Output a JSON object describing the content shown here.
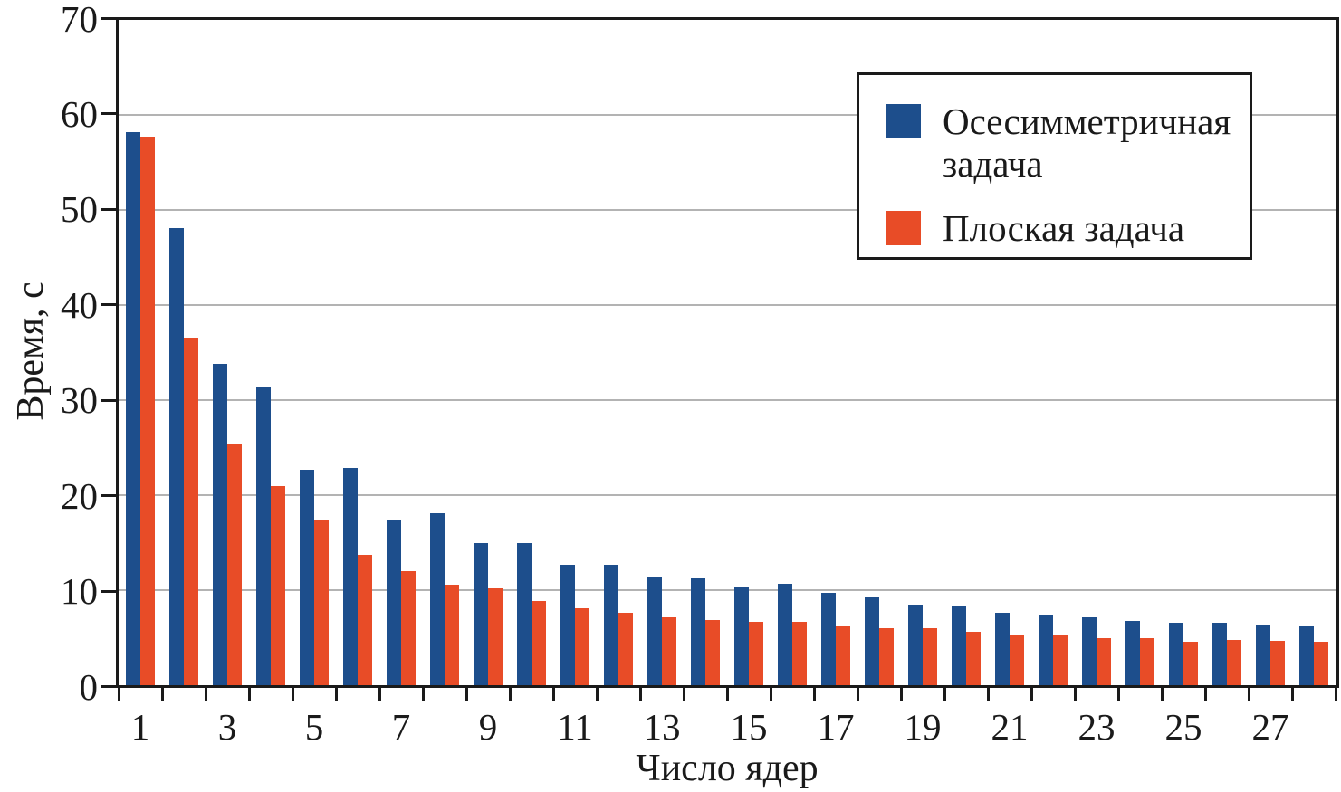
{
  "chart_data": {
    "type": "bar",
    "title": "",
    "xlabel": "Число ядер",
    "ylabel": "Время, с",
    "ylim": [
      0,
      70
    ],
    "yticks": [
      0,
      10,
      20,
      30,
      40,
      50,
      60,
      70
    ],
    "gridlines_at": [
      10,
      20,
      30,
      40,
      50,
      60
    ],
    "grid": "horizontal",
    "legend_position": "top-right-inside",
    "categories": [
      1,
      2,
      3,
      4,
      5,
      6,
      7,
      8,
      9,
      10,
      11,
      12,
      13,
      14,
      15,
      16,
      17,
      18,
      19,
      20,
      21,
      22,
      23,
      24,
      25,
      26,
      27,
      28
    ],
    "xtick_labels": [
      "1",
      "3",
      "5",
      "7",
      "9",
      "11",
      "13",
      "15",
      "17",
      "19",
      "21",
      "23",
      "25",
      "27"
    ],
    "series": [
      {
        "name": "Осесимметричная задача",
        "color": "#1d4e8c",
        "values": [
          58.2,
          48.1,
          33.8,
          31.3,
          22.7,
          22.9,
          17.3,
          18.1,
          15.0,
          15.0,
          12.7,
          12.7,
          11.3,
          11.2,
          10.3,
          10.7,
          9.7,
          9.2,
          8.5,
          8.3,
          7.6,
          7.3,
          7.1,
          6.8,
          6.6,
          6.6,
          6.4,
          6.2
        ]
      },
      {
        "name": "Плоская задача",
        "color": "#e84c27",
        "values": [
          57.7,
          36.6,
          25.3,
          21.0,
          17.3,
          13.7,
          12.0,
          10.6,
          10.2,
          8.9,
          8.1,
          7.6,
          7.1,
          6.9,
          6.7,
          6.7,
          6.2,
          6.0,
          6.0,
          5.6,
          5.2,
          5.2,
          5.0,
          5.0,
          4.6,
          4.8,
          4.7,
          4.6
        ]
      }
    ]
  },
  "colors": {
    "grid": "#b3b3b3",
    "axis": "#1a1a1a",
    "background": "#ffffff"
  }
}
